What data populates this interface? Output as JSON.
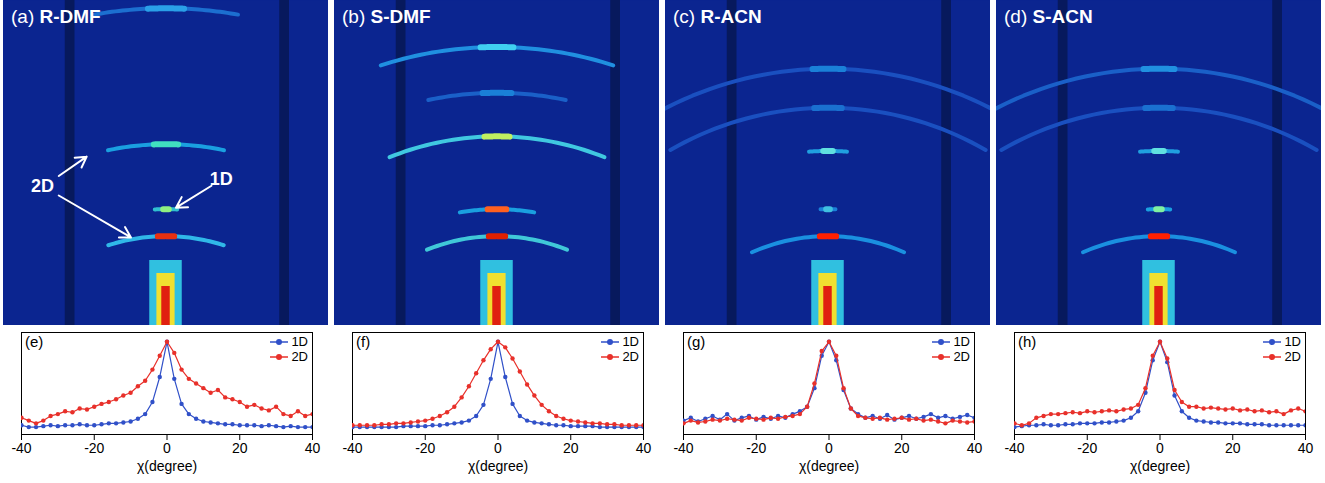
{
  "chart_data": [
    {
      "type": "image",
      "panel": "(a)",
      "title": "R-DMF",
      "xlim": [
        -0.5,
        0.5
      ],
      "ylim": [
        0,
        1
      ],
      "origin": [
        0,
        -0.3
      ],
      "tick_labels": false,
      "rings": [
        {
          "q": 1.276,
          "half_angle": 10,
          "color": "#1c6fd0",
          "peak_color": "#2aa0e8"
        },
        {
          "q": 0.858,
          "half_angle": 12,
          "color": "#1aa0e0",
          "peak_color": "#40e0c0"
        },
        {
          "q": 0.658,
          "half_angle": 3,
          "color": "#30c0d0",
          "peak_color": "#90f080"
        },
        {
          "q": 0.575,
          "half_angle": 18,
          "color": "#30b8e8",
          "peak_color": "#e83010"
        }
      ],
      "annotations": [
        {
          "text": "2D",
          "targets": [
            0.858,
            0.575
          ]
        },
        {
          "text": "1D",
          "targets": [
            0.658
          ]
        }
      ]
    },
    {
      "type": "image",
      "panel": "(b)",
      "title": "S-DMF",
      "xlim": [
        -0.5,
        0.5
      ],
      "ylim": [
        0,
        1
      ],
      "origin": [
        0,
        -0.3
      ],
      "tick_labels": false,
      "rings": [
        {
          "q": 1.157,
          "half_angle": 18,
          "color": "#2090e0",
          "peak_color": "#40d0f0"
        },
        {
          "q": 1.016,
          "half_angle": 12,
          "color": "#1a60c8",
          "peak_color": "#1a80d8"
        },
        {
          "q": 0.882,
          "half_angle": 22,
          "color": "#40c8e0",
          "peak_color": "#c0f060"
        },
        {
          "q": 0.658,
          "half_angle": 10,
          "color": "#1aa0e0",
          "peak_color": "#ff6020"
        },
        {
          "q": 0.575,
          "half_angle": 22,
          "color": "#40c8d8",
          "peak_color": "#e02000"
        }
      ]
    },
    {
      "type": "image",
      "panel": "(c)",
      "title": "R-ACN",
      "xlim": [
        -0.5,
        0.5
      ],
      "ylim": [
        0,
        1
      ],
      "origin": [
        0,
        -0.3
      ],
      "tick_labels": false,
      "rings": [
        {
          "q": 1.09,
          "half_angle": 30,
          "color": "#1a50c0",
          "peak_color": "#1a80d8"
        },
        {
          "q": 0.97,
          "half_angle": 30,
          "color": "#1a50c0",
          "peak_color": "#1a70d0"
        },
        {
          "q": 0.837,
          "half_angle": 4,
          "color": "#20a0e0",
          "peak_color": "#60e0e0"
        },
        {
          "q": 0.658,
          "half_angle": 2,
          "color": "#1a80d8",
          "peak_color": "#40c0e0"
        },
        {
          "q": 0.575,
          "half_angle": 24,
          "color": "#1a90e0",
          "peak_color": "#ff2000"
        }
      ]
    },
    {
      "type": "image",
      "panel": "(d)",
      "title": "S-ACN",
      "xlim": [
        -0.5,
        0.5
      ],
      "ylim": [
        0,
        1
      ],
      "origin": [
        0,
        -0.3
      ],
      "tick_labels": false,
      "rings": [
        {
          "q": 1.09,
          "half_angle": 30,
          "color": "#1a60c8",
          "peak_color": "#2090e0"
        },
        {
          "q": 0.97,
          "half_angle": 30,
          "color": "#1a50c0",
          "peak_color": "#1a70d0"
        },
        {
          "q": 0.837,
          "half_angle": 4,
          "color": "#20a0e0",
          "peak_color": "#60e0e0"
        },
        {
          "q": 0.658,
          "half_angle": 3,
          "color": "#1aa0e0",
          "peak_color": "#80f0a0"
        },
        {
          "q": 0.575,
          "half_angle": 24,
          "color": "#1a90e0",
          "peak_color": "#ff2000"
        }
      ]
    },
    {
      "type": "line",
      "panel": "(e)",
      "xlabel": "χ(degree)",
      "xlim": [
        -40,
        40
      ],
      "xticks": [
        -40,
        -20,
        0,
        20,
        40
      ],
      "ylim": [
        0,
        1.1
      ],
      "tick_labels": "x",
      "legend": "top-right",
      "x": [
        -40,
        -38,
        -36,
        -34,
        -32,
        -30,
        -28,
        -26,
        -24,
        -22,
        -20,
        -18,
        -16,
        -14,
        -12,
        -10,
        -8,
        -6,
        -4,
        -2,
        0,
        2,
        4,
        6,
        8,
        10,
        12,
        14,
        16,
        18,
        20,
        22,
        24,
        26,
        28,
        30,
        32,
        34,
        36,
        38,
        40
      ],
      "series": [
        {
          "name": "1D",
          "color": "#3050c8",
          "marker": "circle",
          "values": [
            0.1,
            0.08,
            0.08,
            0.09,
            0.1,
            0.09,
            0.1,
            0.1,
            0.11,
            0.1,
            0.1,
            0.11,
            0.12,
            0.12,
            0.13,
            0.14,
            0.17,
            0.22,
            0.35,
            0.62,
            1.0,
            0.6,
            0.33,
            0.22,
            0.17,
            0.14,
            0.13,
            0.12,
            0.11,
            0.11,
            0.1,
            0.1,
            0.1,
            0.09,
            0.1,
            0.09,
            0.08,
            0.09,
            0.08,
            0.08,
            0.08
          ]
        },
        {
          "name": "2D",
          "color": "#e8302a",
          "marker": "circle",
          "values": [
            0.18,
            0.15,
            0.12,
            0.15,
            0.2,
            0.22,
            0.25,
            0.24,
            0.28,
            0.27,
            0.3,
            0.33,
            0.35,
            0.38,
            0.42,
            0.45,
            0.52,
            0.58,
            0.7,
            0.85,
            1.0,
            0.88,
            0.7,
            0.6,
            0.55,
            0.5,
            0.45,
            0.48,
            0.4,
            0.38,
            0.35,
            0.3,
            0.32,
            0.28,
            0.26,
            0.3,
            0.22,
            0.2,
            0.25,
            0.2,
            0.22
          ]
        }
      ]
    },
    {
      "type": "line",
      "panel": "(f)",
      "xlabel": "χ(degree)",
      "xlim": [
        -40,
        40
      ],
      "xticks": [
        -40,
        -20,
        0,
        20,
        40
      ],
      "ylim": [
        0,
        1.1
      ],
      "tick_labels": "x",
      "legend": "top-right",
      "x": [
        -40,
        -38,
        -36,
        -34,
        -32,
        -30,
        -28,
        -26,
        -24,
        -22,
        -20,
        -18,
        -16,
        -14,
        -12,
        -10,
        -8,
        -6,
        -4,
        -2,
        0,
        2,
        4,
        6,
        8,
        10,
        12,
        14,
        16,
        18,
        20,
        22,
        24,
        26,
        28,
        30,
        32,
        34,
        36,
        38,
        40
      ],
      "series": [
        {
          "name": "1D",
          "color": "#3050c8",
          "marker": "circle",
          "values": [
            0.08,
            0.08,
            0.08,
            0.08,
            0.08,
            0.08,
            0.08,
            0.09,
            0.09,
            0.09,
            0.09,
            0.1,
            0.1,
            0.11,
            0.12,
            0.13,
            0.15,
            0.2,
            0.32,
            0.6,
            1.0,
            0.62,
            0.33,
            0.2,
            0.15,
            0.13,
            0.12,
            0.11,
            0.1,
            0.1,
            0.09,
            0.09,
            0.09,
            0.09,
            0.08,
            0.08,
            0.08,
            0.08,
            0.08,
            0.08,
            0.08
          ]
        },
        {
          "name": "2D",
          "color": "#e8302a",
          "marker": "circle",
          "values": [
            0.1,
            0.1,
            0.1,
            0.1,
            0.11,
            0.11,
            0.12,
            0.12,
            0.13,
            0.14,
            0.15,
            0.17,
            0.2,
            0.24,
            0.3,
            0.4,
            0.52,
            0.66,
            0.8,
            0.92,
            1.0,
            0.94,
            0.82,
            0.68,
            0.54,
            0.42,
            0.32,
            0.25,
            0.2,
            0.17,
            0.15,
            0.14,
            0.13,
            0.12,
            0.12,
            0.11,
            0.11,
            0.1,
            0.1,
            0.1,
            0.1
          ]
        }
      ]
    },
    {
      "type": "line",
      "panel": "(g)",
      "xlabel": "χ(degree)",
      "xlim": [
        -40,
        40
      ],
      "xticks": [
        -40,
        -20,
        0,
        20,
        40
      ],
      "ylim": [
        0,
        1.1
      ],
      "tick_labels": "x",
      "legend": "top-right",
      "x": [
        -40,
        -38,
        -36,
        -34,
        -32,
        -30,
        -28,
        -26,
        -24,
        -22,
        -20,
        -18,
        -16,
        -14,
        -12,
        -10,
        -8,
        -6,
        -4,
        -2,
        0,
        2,
        4,
        6,
        8,
        10,
        12,
        14,
        16,
        18,
        20,
        22,
        24,
        26,
        28,
        30,
        32,
        34,
        36,
        38,
        40
      ],
      "series": [
        {
          "name": "1D",
          "color": "#3050c8",
          "marker": "circle",
          "values": [
            0.15,
            0.18,
            0.14,
            0.17,
            0.2,
            0.16,
            0.22,
            0.15,
            0.18,
            0.2,
            0.16,
            0.19,
            0.17,
            0.2,
            0.18,
            0.22,
            0.25,
            0.3,
            0.5,
            0.85,
            1.0,
            0.8,
            0.48,
            0.28,
            0.22,
            0.18,
            0.2,
            0.17,
            0.21,
            0.16,
            0.18,
            0.2,
            0.17,
            0.19,
            0.22,
            0.18,
            0.2,
            0.17,
            0.19,
            0.21,
            0.18
          ]
        },
        {
          "name": "2D",
          "color": "#e8302a",
          "marker": "circle",
          "values": [
            0.12,
            0.15,
            0.13,
            0.14,
            0.16,
            0.15,
            0.17,
            0.16,
            0.15,
            0.18,
            0.17,
            0.16,
            0.18,
            0.17,
            0.19,
            0.2,
            0.22,
            0.3,
            0.55,
            0.9,
            1.0,
            0.85,
            0.5,
            0.28,
            0.2,
            0.18,
            0.17,
            0.18,
            0.16,
            0.17,
            0.18,
            0.16,
            0.17,
            0.15,
            0.16,
            0.14,
            0.12,
            0.15,
            0.14,
            0.13,
            0.14
          ]
        }
      ]
    },
    {
      "type": "line",
      "panel": "(h)",
      "xlabel": "χ(degree)",
      "xlim": [
        -40,
        40
      ],
      "xticks": [
        -40,
        -20,
        0,
        20,
        40
      ],
      "ylim": [
        0,
        1.1
      ],
      "tick_labels": "x",
      "legend": "top-right",
      "x": [
        -40,
        -38,
        -36,
        -34,
        -32,
        -30,
        -28,
        -26,
        -24,
        -22,
        -20,
        -18,
        -16,
        -14,
        -12,
        -10,
        -8,
        -6,
        -4,
        -2,
        0,
        2,
        4,
        6,
        8,
        10,
        12,
        14,
        16,
        18,
        20,
        22,
        24,
        26,
        28,
        30,
        32,
        34,
        36,
        38,
        40
      ],
      "series": [
        {
          "name": "1D",
          "color": "#3050c8",
          "marker": "circle",
          "values": [
            0.08,
            0.09,
            0.1,
            0.1,
            0.11,
            0.1,
            0.1,
            0.11,
            0.11,
            0.12,
            0.12,
            0.12,
            0.13,
            0.13,
            0.14,
            0.15,
            0.18,
            0.25,
            0.45,
            0.8,
            1.0,
            0.78,
            0.42,
            0.25,
            0.18,
            0.15,
            0.14,
            0.13,
            0.13,
            0.12,
            0.12,
            0.12,
            0.11,
            0.11,
            0.11,
            0.1,
            0.1,
            0.1,
            0.1,
            0.1,
            0.1
          ]
        },
        {
          "name": "2D",
          "color": "#e8302a",
          "marker": "circle",
          "values": [
            0.12,
            0.1,
            0.12,
            0.18,
            0.2,
            0.22,
            0.22,
            0.23,
            0.24,
            0.23,
            0.25,
            0.24,
            0.25,
            0.26,
            0.25,
            0.27,
            0.28,
            0.32,
            0.5,
            0.85,
            1.0,
            0.82,
            0.48,
            0.35,
            0.3,
            0.3,
            0.28,
            0.29,
            0.28,
            0.27,
            0.28,
            0.26,
            0.27,
            0.25,
            0.26,
            0.24,
            0.25,
            0.22,
            0.26,
            0.28,
            0.25
          ]
        }
      ]
    }
  ]
}
